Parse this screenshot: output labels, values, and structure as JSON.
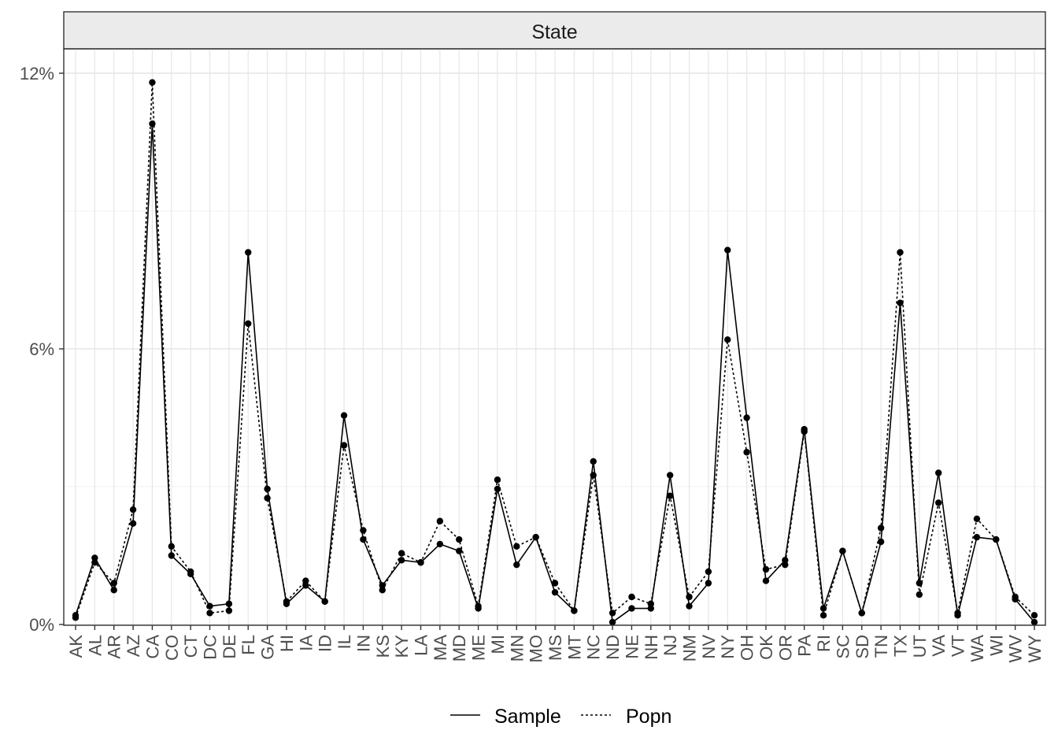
{
  "chart_data": {
    "type": "line",
    "facet_label": "State",
    "title": "",
    "xlabel": "",
    "ylabel": "",
    "categories": [
      "AK",
      "AL",
      "AR",
      "AZ",
      "CA",
      "CO",
      "CT",
      "DC",
      "DE",
      "FL",
      "GA",
      "HI",
      "IA",
      "ID",
      "IL",
      "IN",
      "KS",
      "KY",
      "LA",
      "MA",
      "MD",
      "ME",
      "MI",
      "MN",
      "MO",
      "MS",
      "MT",
      "NC",
      "ND",
      "NE",
      "NH",
      "NJ",
      "NM",
      "NV",
      "NY",
      "OH",
      "OK",
      "OR",
      "PA",
      "RI",
      "SC",
      "SD",
      "TN",
      "TX",
      "UT",
      "VA",
      "VT",
      "WA",
      "WI",
      "WV",
      "WY"
    ],
    "ylim": [
      0,
      12.5
    ],
    "yticks": [
      0,
      6,
      12
    ],
    "ytick_labels": [
      "0%",
      "6%",
      "12%"
    ],
    "series": [
      {
        "name": "Sample",
        "line_style": "solid",
        "values": [
          0.2,
          1.45,
          0.75,
          2.2,
          10.9,
          1.5,
          1.1,
          0.4,
          0.45,
          8.1,
          2.95,
          0.45,
          0.85,
          0.5,
          4.55,
          1.85,
          0.85,
          1.4,
          1.35,
          1.75,
          1.6,
          0.35,
          2.95,
          1.3,
          1.9,
          0.7,
          0.3,
          3.55,
          0.05,
          0.35,
          0.35,
          3.25,
          0.4,
          0.9,
          8.15,
          4.5,
          0.95,
          1.4,
          4.25,
          0.35,
          1.6,
          0.25,
          1.8,
          7.0,
          0.9,
          3.3,
          0.2,
          1.9,
          1.85,
          0.55,
          0.05
        ]
      },
      {
        "name": "Popn",
        "line_style": "dotted",
        "values": [
          0.15,
          1.35,
          0.9,
          2.5,
          11.8,
          1.7,
          1.15,
          0.25,
          0.3,
          6.55,
          2.75,
          0.5,
          0.95,
          0.5,
          3.9,
          2.05,
          0.75,
          1.55,
          1.35,
          2.25,
          1.85,
          0.4,
          3.15,
          1.7,
          1.9,
          0.9,
          0.3,
          3.25,
          0.25,
          0.6,
          0.45,
          2.8,
          0.6,
          1.15,
          6.2,
          3.75,
          1.2,
          1.3,
          4.2,
          0.2,
          1.6,
          0.25,
          2.1,
          8.1,
          0.65,
          2.65,
          0.25,
          2.3,
          1.85,
          0.6,
          0.2
        ]
      }
    ],
    "legend": {
      "position": "bottom",
      "entries": [
        "Sample",
        "Popn"
      ]
    },
    "grid": true
  }
}
